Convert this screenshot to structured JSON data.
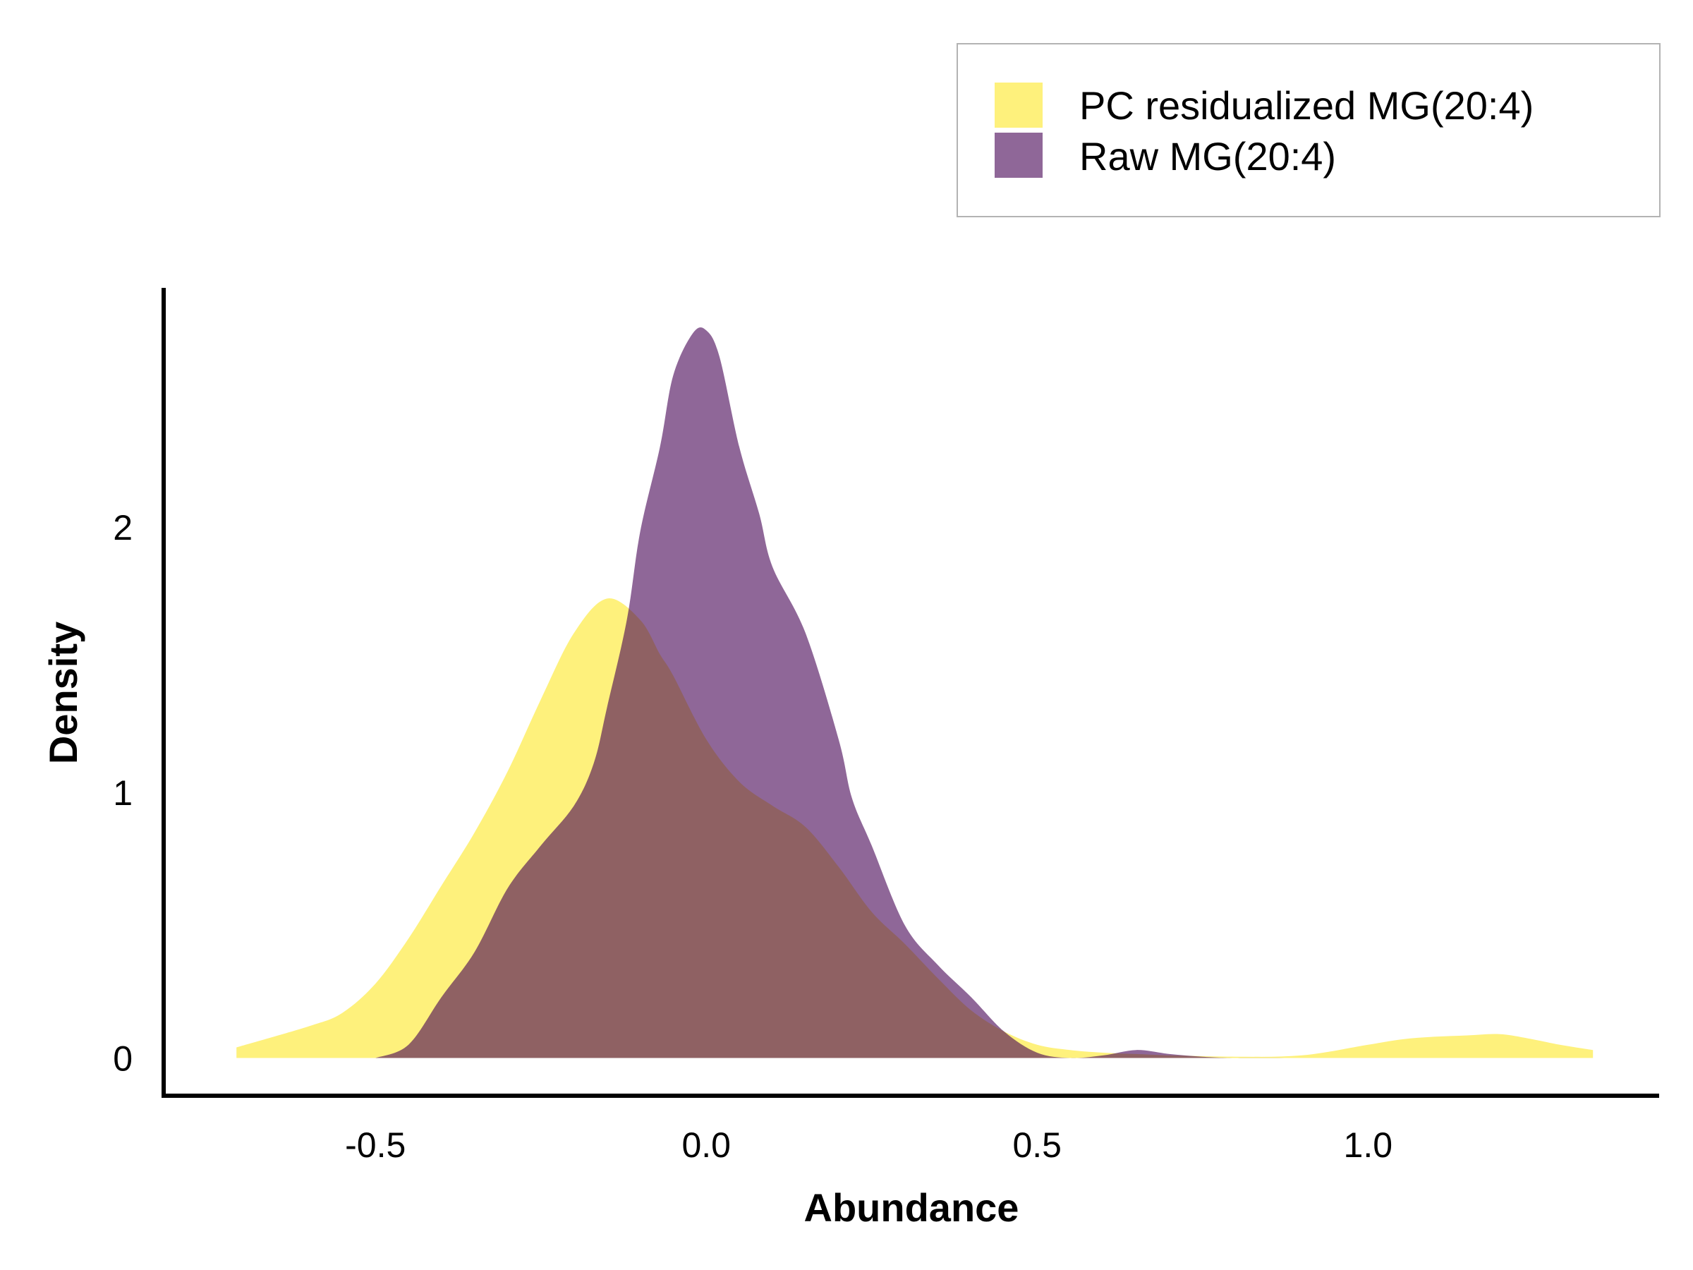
{
  "chart_data": {
    "type": "area",
    "xlabel": "Abundance",
    "ylabel": "Density",
    "xlim": [
      -0.82,
      1.44
    ],
    "ylim": [
      -0.15,
      2.9
    ],
    "x_ticks": [
      {
        "value": -0.5,
        "label": "-0.5"
      },
      {
        "value": 0.0,
        "label": "0.0"
      },
      {
        "value": 0.5,
        "label": "0.5"
      },
      {
        "value": 1.0,
        "label": "1.0"
      }
    ],
    "y_ticks": [
      {
        "value": 0,
        "label": "0"
      },
      {
        "value": 1,
        "label": "1"
      },
      {
        "value": 2,
        "label": "2"
      }
    ],
    "grid": false,
    "legend_position": "top-right",
    "series": [
      {
        "name": "PC residualized MG(20:4)",
        "color": "#FDE725",
        "opacity": 0.6,
        "x": [
          -0.71,
          -0.6,
          -0.55,
          -0.5,
          -0.45,
          -0.4,
          -0.35,
          -0.3,
          -0.25,
          -0.2,
          -0.15,
          -0.1,
          -0.07,
          -0.05,
          0.0,
          0.05,
          0.1,
          0.15,
          0.2,
          0.25,
          0.3,
          0.35,
          0.4,
          0.45,
          0.5,
          0.55,
          0.6,
          0.65,
          0.7,
          0.8,
          0.9,
          1.0,
          1.05,
          1.1,
          1.15,
          1.2,
          1.25,
          1.29,
          1.34
        ],
        "y": [
          0.04,
          0.12,
          0.17,
          0.28,
          0.45,
          0.65,
          0.85,
          1.08,
          1.35,
          1.6,
          1.73,
          1.65,
          1.52,
          1.44,
          1.2,
          1.04,
          0.95,
          0.87,
          0.72,
          0.55,
          0.43,
          0.3,
          0.18,
          0.1,
          0.05,
          0.03,
          0.02,
          0.015,
          0.01,
          0.005,
          0.01,
          0.05,
          0.07,
          0.08,
          0.085,
          0.09,
          0.07,
          0.05,
          0.03
        ]
      },
      {
        "name": "Raw MG(20:4)",
        "color": "#440154",
        "opacity": 0.6,
        "x": [
          -0.5,
          -0.45,
          -0.4,
          -0.35,
          -0.3,
          -0.25,
          -0.2,
          -0.17,
          -0.15,
          -0.12,
          -0.1,
          -0.07,
          -0.05,
          -0.02,
          0.0,
          0.02,
          0.05,
          0.08,
          0.1,
          0.15,
          0.2,
          0.22,
          0.25,
          0.3,
          0.35,
          0.4,
          0.45,
          0.5,
          0.55,
          0.6,
          0.65,
          0.7,
          0.75,
          0.8,
          0.9,
          1.0
        ],
        "y": [
          0.0,
          0.05,
          0.23,
          0.4,
          0.64,
          0.8,
          0.95,
          1.11,
          1.32,
          1.65,
          1.98,
          2.3,
          2.57,
          2.73,
          2.74,
          2.64,
          2.3,
          2.05,
          1.85,
          1.6,
          1.2,
          0.98,
          0.8,
          0.5,
          0.35,
          0.23,
          0.1,
          0.02,
          0.0,
          0.01,
          0.03,
          0.015,
          0.005,
          0.0,
          0.0,
          0.0
        ]
      }
    ]
  }
}
